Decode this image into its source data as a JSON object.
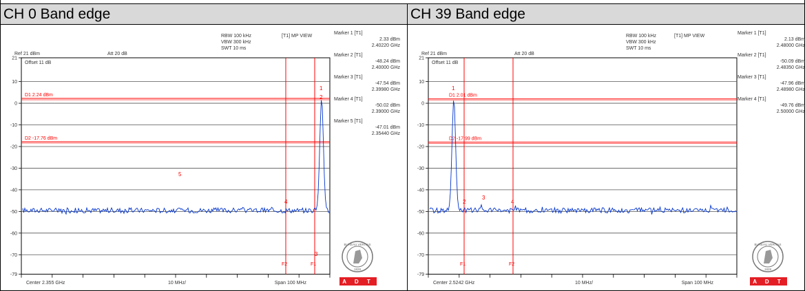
{
  "panels": [
    {
      "title": "CH 0 Band edge",
      "header": {
        "rbw": "RBW 100 kHz",
        "vbw": "VBW 300 kHz",
        "swt": "SWT 10 ms",
        "view": "[T1] MP VIEW",
        "ref": "Ref 21 dBm",
        "att": "Att 20 dB",
        "offset": "Offset 11 dB"
      },
      "yticks": [
        "21",
        "10",
        "0",
        "-10",
        "-20",
        "-30",
        "-40",
        "-50",
        "-60",
        "-70",
        "-79"
      ],
      "footer": {
        "center": "Center 2.355 GHz",
        "div": "10 MHz/",
        "span": "Span 100 MHz"
      },
      "lines": {
        "d1": "D1 2.24 dBm",
        "d2": "D2 -17.76 dBm"
      },
      "f_labels": [
        "F2",
        "F1"
      ],
      "markers": [
        {
          "label": "Marker 1 [T1]",
          "level": "2.33 dBm",
          "freq": "2.40220 GHz"
        },
        {
          "label": "Marker 2 [T1]",
          "level": "-48.24 dBm",
          "freq": "2.40000 GHz"
        },
        {
          "label": "Marker 3 [T1]",
          "level": "-47.54 dBm",
          "freq": "2.39980 GHz"
        },
        {
          "label": "Marker 4 [T1]",
          "level": "-50.02 dBm",
          "freq": "2.39000 GHz"
        },
        {
          "label": "Marker 5 [T1]",
          "level": "-47.01 dBm",
          "freq": "2.35440 GHz"
        }
      ],
      "plot_markers": [
        "1",
        "2",
        "3",
        "4",
        "5"
      ]
    },
    {
      "title": "CH 39 Band edge",
      "header": {
        "rbw": "RBW 100 kHz",
        "vbw": "VBW 300 kHz",
        "swt": "SWT 10 ms",
        "view": "[T1] MP VIEW",
        "ref": "Ref 21 dBm",
        "att": "Att 20 dB",
        "offset": "Offset 11 dB"
      },
      "yticks": [
        "21",
        "10",
        "0",
        "-10",
        "-20",
        "-30",
        "-40",
        "-50",
        "-60",
        "-70",
        "-79"
      ],
      "footer": {
        "center": "Center 2.5242 GHz",
        "div": "10 MHz/",
        "span": "Span 100 MHz"
      },
      "lines": {
        "d1": "D1 2.01 dBm",
        "d2": "D2 -17.99 dBm"
      },
      "f_labels": [
        "F1",
        "F2"
      ],
      "markers": [
        {
          "label": "Marker 1 [T1]",
          "level": "2.13 dBm",
          "freq": "2.48000 GHz"
        },
        {
          "label": "Marker 2 [T1]",
          "level": "-50.09 dBm",
          "freq": "2.48350 GHz"
        },
        {
          "label": "Marker 3 [T1]",
          "level": "-47.96 dBm",
          "freq": "2.48980 GHz"
        },
        {
          "label": "Marker 4 [T1]",
          "level": "-49.76 dBm",
          "freq": "2.50000 GHz"
        }
      ],
      "plot_markers": [
        "1",
        "2",
        "3",
        "4"
      ]
    }
  ],
  "logo": {
    "ring_text": "BUREAU VERITAS",
    "year": "1828",
    "brand": "A D T"
  },
  "colors": {
    "trace": "#0033cc",
    "limit": "#ff0000",
    "logo_red": "#e31e24",
    "title_bg": "#d9d9d9"
  }
}
